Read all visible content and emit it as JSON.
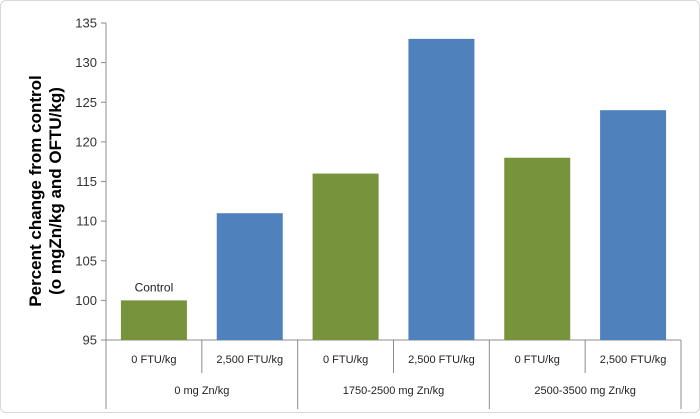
{
  "chart_data": {
    "type": "bar",
    "ylabel_line1": "Percent change from control",
    "ylabel_line2": "(o mgZn/kg and OFTU/kg)",
    "ylim": [
      95,
      135
    ],
    "yticks": [
      95,
      100,
      105,
      110,
      115,
      120,
      125,
      130,
      135
    ],
    "grid": false,
    "legend": "none",
    "categories": [
      {
        "label": "0 FTU/kg",
        "group": "0 mg Zn/kg",
        "value": 100,
        "color": "#77933C"
      },
      {
        "label": "2,500 FTU/kg",
        "group": "0 mg Zn/kg",
        "value": 111,
        "color": "#4F81BD"
      },
      {
        "label": "0 FTU/kg",
        "group": "1750-2500 mg Zn/kg",
        "value": 116,
        "color": "#77933C"
      },
      {
        "label": "2,500 FTU/kg",
        "group": "1750-2500 mg Zn/kg",
        "value": 133,
        "color": "#4F81BD"
      },
      {
        "label": "0 FTU/kg",
        "group": "2500-3500 mg Zn/kg",
        "value": 118,
        "color": "#77933C"
      },
      {
        "label": "2,500 FTU/kg",
        "group": "2500-3500 mg Zn/kg",
        "value": 124,
        "color": "#4F81BD"
      }
    ],
    "groups": [
      "0 mg Zn/kg",
      "1750-2500 mg Zn/kg",
      "2500-3500 mg Zn/kg"
    ],
    "annotations": [
      {
        "text": "Control",
        "category_index": 0
      }
    ]
  }
}
